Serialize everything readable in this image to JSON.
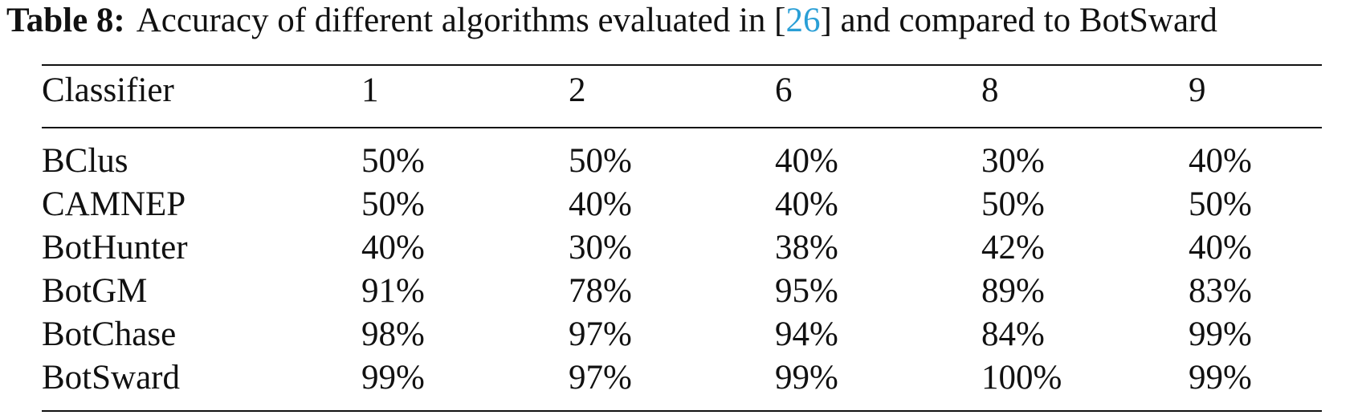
{
  "caption": {
    "label": "Table 8:",
    "text_before": "Accuracy of different algorithms evaluated in [",
    "ref": "26",
    "text_after": "] and compared to BotSward"
  },
  "table": {
    "header": [
      "Classifier",
      "1",
      "2",
      "6",
      "8",
      "9"
    ],
    "rows": [
      [
        "BClus",
        "50%",
        "50%",
        "40%",
        "30%",
        "40%"
      ],
      [
        "CAMNEP",
        "50%",
        "40%",
        "40%",
        "50%",
        "50%"
      ],
      [
        "BotHunter",
        "40%",
        "30%",
        "38%",
        "42%",
        "40%"
      ],
      [
        "BotGM",
        "91%",
        "78%",
        "95%",
        "89%",
        "83%"
      ],
      [
        "BotChase",
        "98%",
        "97%",
        "94%",
        "84%",
        "99%"
      ],
      [
        "BotSward",
        "99%",
        "97%",
        "99%",
        "100%",
        "99%"
      ]
    ]
  }
}
